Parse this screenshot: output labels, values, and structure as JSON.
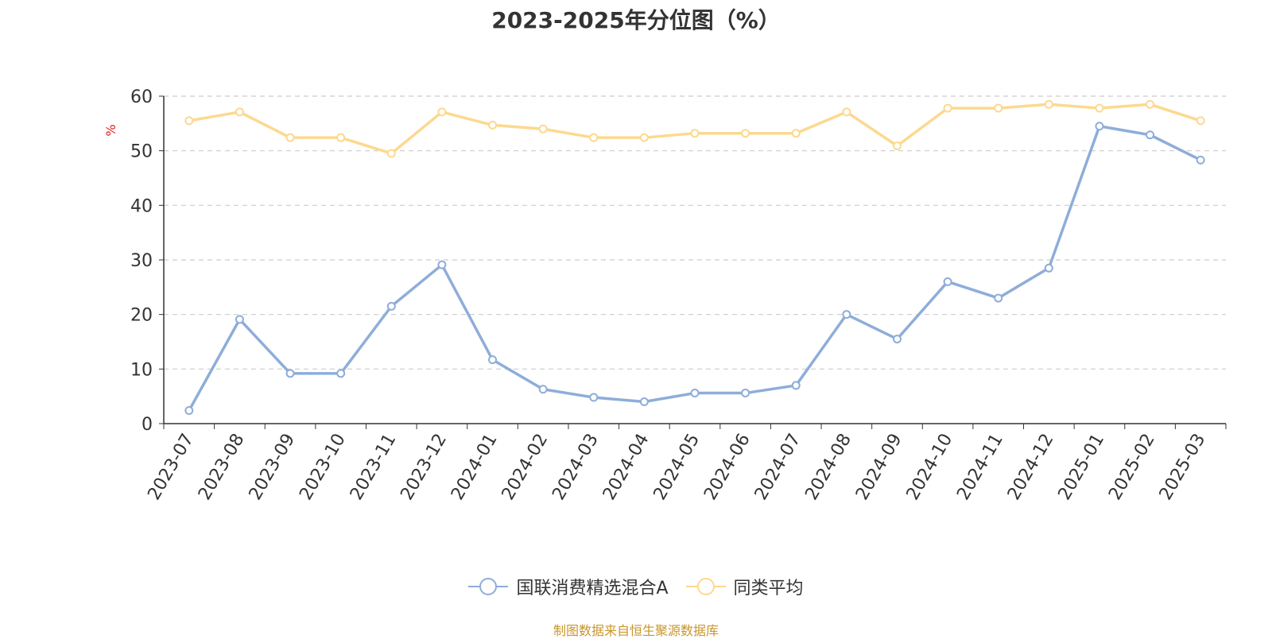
{
  "chart_data": {
    "type": "line",
    "title": "2023-2025年分位图（%）",
    "ylabel": "%",
    "ylim": [
      0,
      60
    ],
    "yticks": [
      0,
      10,
      20,
      30,
      40,
      50,
      60
    ],
    "grid": true,
    "legend_position": "bottom-center",
    "categories": [
      "2023-07",
      "2023-08",
      "2023-09",
      "2023-10",
      "2023-11",
      "2023-12",
      "2024-01",
      "2024-02",
      "2024-03",
      "2024-04",
      "2024-05",
      "2024-06",
      "2024-07",
      "2024-08",
      "2024-09",
      "2024-10",
      "2024-11",
      "2024-12",
      "2025-01",
      "2025-02",
      "2025-03"
    ],
    "series": [
      {
        "name": "国联消费精选混合A",
        "color": "#8eadd9",
        "values": [
          2.4,
          19.1,
          9.2,
          9.2,
          21.5,
          29.1,
          11.7,
          6.3,
          4.8,
          4.0,
          5.6,
          5.6,
          7.0,
          20.0,
          15.5,
          26.0,
          23.0,
          28.5,
          54.5,
          52.9,
          48.3
        ]
      },
      {
        "name": "同类平均",
        "color": "#fcd98f",
        "values": [
          55.5,
          57.1,
          52.4,
          52.4,
          49.5,
          57.1,
          54.7,
          54.0,
          52.4,
          52.4,
          53.2,
          53.2,
          53.2,
          57.1,
          50.9,
          57.8,
          57.8,
          58.5,
          57.8,
          58.5,
          55.5
        ]
      }
    ]
  },
  "source": "制图数据来自恒生聚源数据库"
}
